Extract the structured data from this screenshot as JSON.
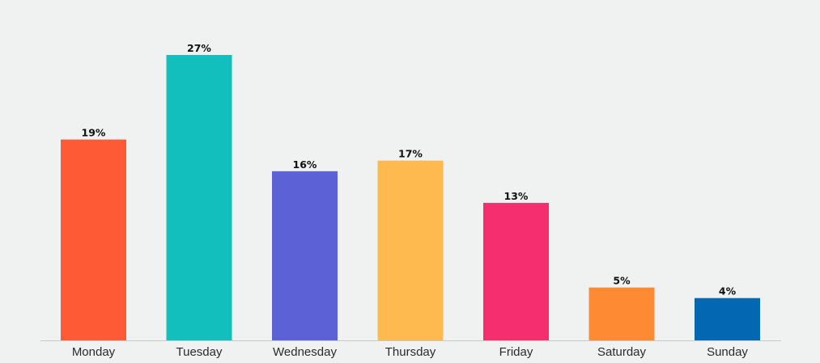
{
  "chart_data": {
    "type": "bar",
    "title": "",
    "xlabel": "",
    "ylabel": "",
    "grid": false,
    "legend": "none",
    "ylim": [
      0,
      27
    ],
    "categories": [
      "Monday",
      "Tuesday",
      "Wednesday",
      "Thursday",
      "Friday",
      "Saturday",
      "Sunday"
    ],
    "values": [
      19,
      27,
      16,
      17,
      13,
      5,
      4
    ],
    "data_labels": [
      "19%",
      "27%",
      "16%",
      "17%",
      "13%",
      "5%",
      "4%"
    ],
    "colors": [
      "#fe5a36",
      "#13bfbd",
      "#5c62d6",
      "#feba4f",
      "#f52e70",
      "#fe8a34",
      "#0368b1"
    ],
    "baseline_color": "#c8caca",
    "background_color": "#f0f1f1"
  }
}
